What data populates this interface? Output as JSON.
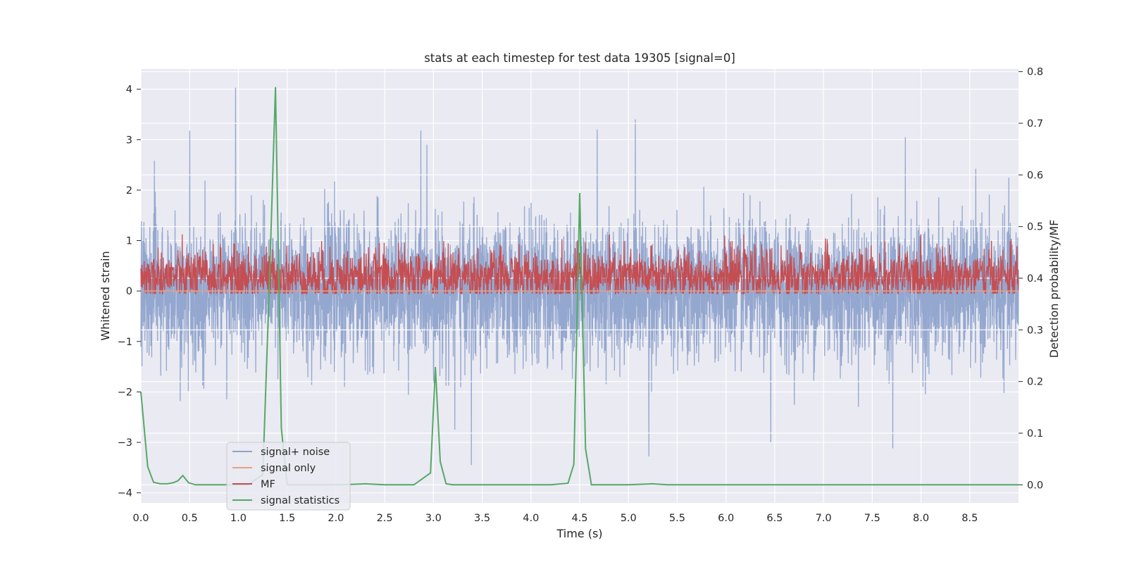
{
  "chart_data": {
    "type": "line",
    "title": "stats at each timestep for test data 19305 [signal=0]",
    "xlabel": "Time (s)",
    "ylabel": "Whitened strain",
    "y2label": "Detection probability/MF",
    "xlim": [
      0.0,
      9.0
    ],
    "ylim": [
      -4.2,
      4.4
    ],
    "y2lim": [
      -0.035,
      0.805
    ],
    "grid": true,
    "xticks": [
      "0.0",
      "0.5",
      "1.0",
      "1.5",
      "2.0",
      "2.5",
      "3.0",
      "3.5",
      "4.0",
      "4.5",
      "5.0",
      "5.5",
      "6.0",
      "6.5",
      "7.0",
      "7.5",
      "8.0",
      "8.5"
    ],
    "yticks": [
      "4",
      "3",
      "2",
      "1",
      "0",
      "−1",
      "−2",
      "−3",
      "−4"
    ],
    "y2ticks": [
      "0.8",
      "0.7",
      "0.6",
      "0.5",
      "0.4",
      "0.3",
      "0.2",
      "0.1",
      "0.0"
    ],
    "legend": {
      "placement": "lower-left"
    },
    "series": [
      {
        "name": "signal+ noise",
        "axis": "left",
        "color": "#8fa3cc",
        "note": "dense whitened noise trace, roughly within -2 to +2 with spikes",
        "peaks": [
          {
            "x": 0.97,
            "y": 4.03
          },
          {
            "x": 0.5,
            "y": 3.18
          },
          {
            "x": 5.07,
            "y": 3.4
          },
          {
            "x": 2.87,
            "y": 3.18
          },
          {
            "x": 4.68,
            "y": 3.2
          },
          {
            "x": 7.84,
            "y": 3.05
          },
          {
            "x": 6.46,
            "y": -3.0
          },
          {
            "x": 7.71,
            "y": -3.12
          },
          {
            "x": 5.21,
            "y": -3.28
          },
          {
            "x": 3.39,
            "y": -3.45
          },
          {
            "x": 3.22,
            "y": -2.75
          }
        ]
      },
      {
        "name": "signal only",
        "axis": "left",
        "color": "#e8a082",
        "constant": 0.0
      },
      {
        "name": "MF",
        "axis": "right",
        "color": "#c44e52",
        "note": "band oscillating roughly between 0.37 and 0.46",
        "range": [
          0.37,
          0.465
        ]
      },
      {
        "name": "signal statistics",
        "axis": "right",
        "color": "#55a868",
        "x": [
          0.0,
          0.07,
          0.13,
          0.2,
          0.27,
          0.33,
          0.38,
          0.43,
          0.49,
          0.56,
          0.7,
          0.9,
          1.1,
          1.25,
          1.32,
          1.38,
          1.44,
          1.5,
          1.65,
          1.85,
          2.05,
          2.3,
          2.5,
          2.8,
          2.97,
          3.02,
          3.07,
          3.13,
          3.2,
          3.4,
          3.8,
          4.2,
          4.38,
          4.44,
          4.5,
          4.56,
          4.62,
          4.8,
          5.0,
          5.25,
          5.4,
          6.0,
          7.0,
          8.0,
          9.0
        ],
        "y": [
          0.18,
          0.035,
          0.005,
          0.002,
          0.002,
          0.004,
          0.008,
          0.018,
          0.004,
          0.0,
          0.0,
          0.0,
          0.0,
          0.02,
          0.4,
          0.77,
          0.11,
          0.0,
          0.0,
          0.0,
          0.0,
          0.002,
          0.0,
          0.0,
          0.023,
          0.228,
          0.045,
          0.002,
          0.0,
          0.0,
          0.0,
          0.0,
          0.003,
          0.04,
          0.565,
          0.07,
          0.0,
          0.0,
          0.0,
          0.002,
          0.0,
          0.0,
          0.0,
          0.0,
          0.0
        ]
      }
    ]
  }
}
